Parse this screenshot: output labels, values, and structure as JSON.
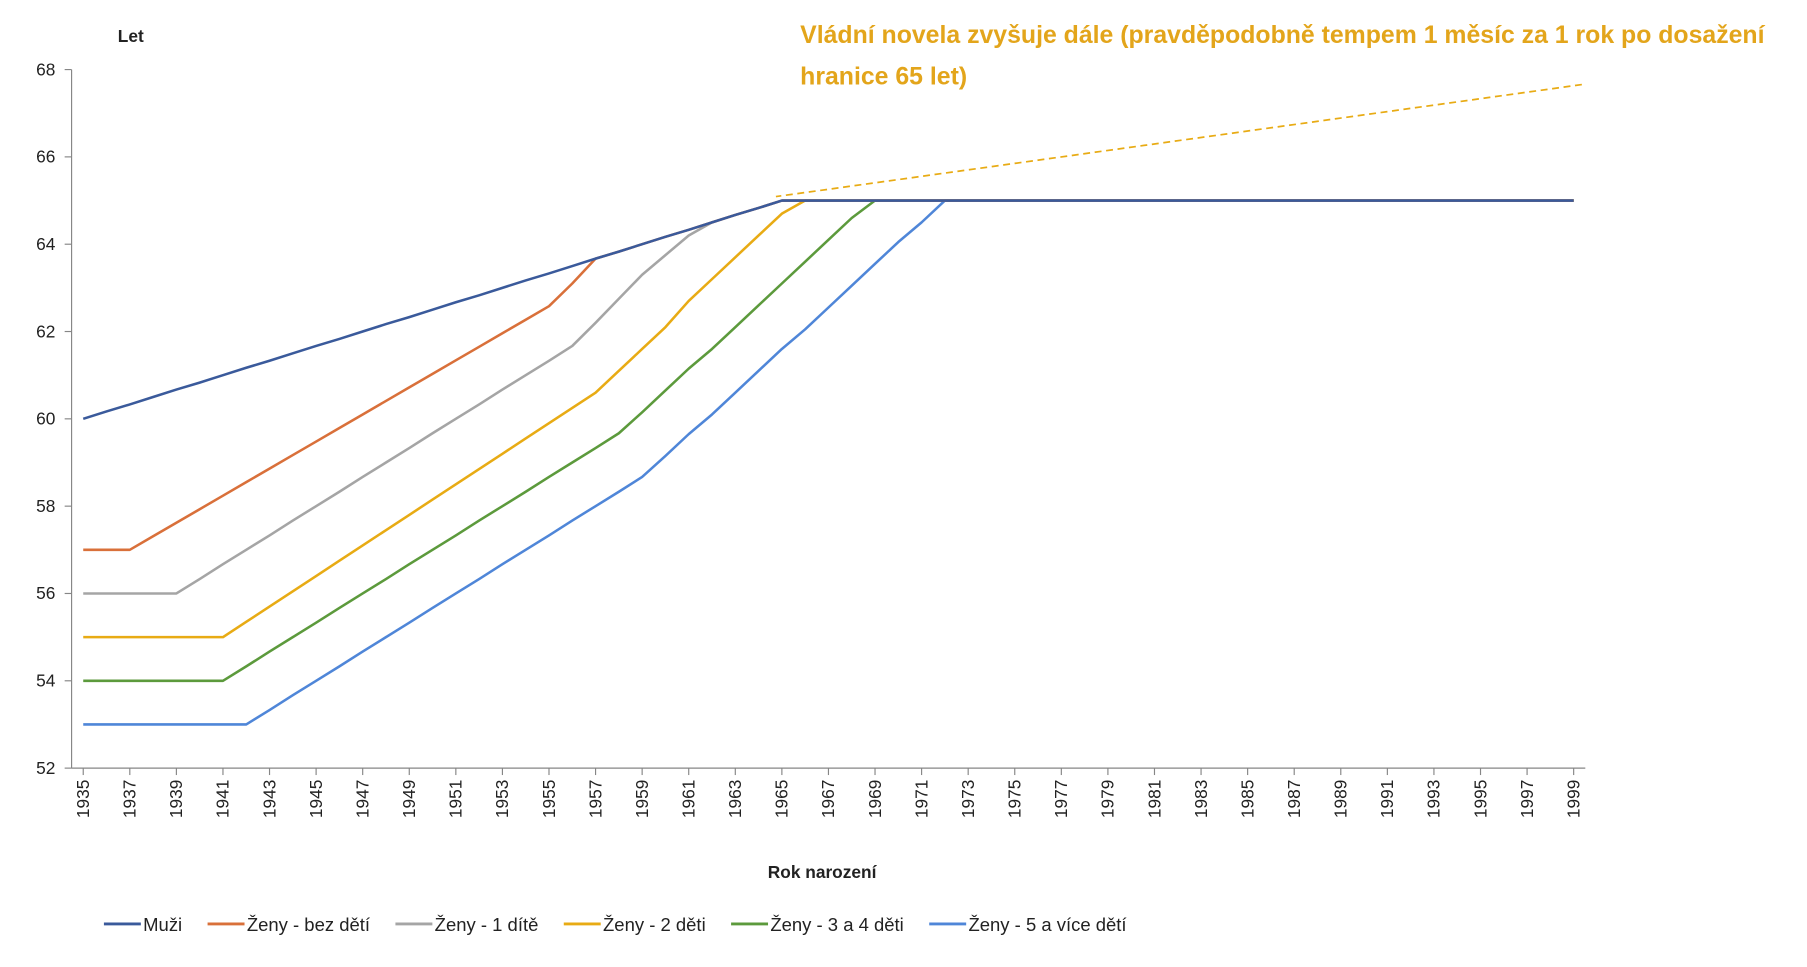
{
  "chart_data": {
    "type": "line",
    "y_label": "Let",
    "x_label": "Rok narození",
    "annotation": "Vládní novela zvyšuje dále (pravděpodobně tempem 1 měsíc za 1 rok po dosažení hranice 65 let)",
    "x": [
      1935,
      1936,
      1937,
      1938,
      1939,
      1940,
      1941,
      1942,
      1943,
      1944,
      1945,
      1946,
      1947,
      1948,
      1949,
      1950,
      1951,
      1952,
      1953,
      1954,
      1955,
      1956,
      1957,
      1958,
      1959,
      1960,
      1961,
      1962,
      1963,
      1964,
      1965,
      1966,
      1967,
      1968,
      1969,
      1970,
      1971,
      1972,
      1973,
      1974,
      1975,
      1976,
      1977,
      1978,
      1979,
      1980,
      1981,
      1982,
      1983,
      1984,
      1985,
      1986,
      1987,
      1988,
      1989,
      1990,
      1991,
      1992,
      1993,
      1994,
      1995,
      1996,
      1997,
      1998,
      1999
    ],
    "xlim": [
      1934.5,
      1999.5
    ],
    "xticks": [
      1935,
      1937,
      1939,
      1941,
      1943,
      1945,
      1947,
      1949,
      1951,
      1953,
      1955,
      1957,
      1959,
      1961,
      1963,
      1965,
      1967,
      1969,
      1971,
      1973,
      1975,
      1977,
      1979,
      1981,
      1983,
      1985,
      1987,
      1989,
      1991,
      1993,
      1995,
      1997,
      1999
    ],
    "ylim": [
      52,
      68
    ],
    "yticks": [
      52,
      54,
      56,
      58,
      60,
      62,
      64,
      66,
      68
    ],
    "grid": false,
    "legend": "bottom",
    "series": [
      {
        "name": "Muži",
        "color": "#3a5a9b",
        "values": [
          60,
          60.17,
          60.33,
          60.5,
          60.67,
          60.83,
          61,
          61.17,
          61.33,
          61.5,
          61.67,
          61.83,
          62,
          62.17,
          62.33,
          62.5,
          62.67,
          62.83,
          63,
          63.17,
          63.33,
          63.5,
          63.67,
          63.83,
          64,
          64.17,
          64.33,
          64.5,
          64.67,
          64.83,
          65,
          65,
          65,
          65,
          65,
          65,
          65,
          65,
          65,
          65,
          65,
          65,
          65,
          65,
          65,
          65,
          65,
          65,
          65,
          65,
          65,
          65,
          65,
          65,
          65,
          65,
          65,
          65,
          65,
          65,
          65,
          65,
          65,
          65,
          65
        ]
      },
      {
        "name": "Ženy - bez dětí",
        "color": "#d9703a",
        "values": [
          57,
          57,
          57,
          57.31,
          57.62,
          57.93,
          58.24,
          58.55,
          58.86,
          59.17,
          59.48,
          59.79,
          60.1,
          60.41,
          60.72,
          61.03,
          61.34,
          61.65,
          61.96,
          62.27,
          62.58,
          63.1,
          63.67,
          63.83,
          64,
          64.17,
          64.33,
          64.5,
          64.67,
          64.83,
          65,
          65,
          65,
          65,
          65,
          65,
          65,
          65,
          65,
          65,
          65,
          65,
          65,
          65,
          65,
          65,
          65,
          65,
          65,
          65,
          65,
          65,
          65,
          65,
          65,
          65,
          65,
          65,
          65,
          65,
          65,
          65,
          65,
          65,
          65
        ]
      },
      {
        "name": "Ženy - 1 dítě",
        "color": "#a5a5a5",
        "values": [
          56,
          56,
          56,
          56,
          56,
          56.33,
          56.67,
          57,
          57.33,
          57.67,
          58,
          58.33,
          58.67,
          59,
          59.33,
          59.67,
          60,
          60.33,
          60.67,
          61,
          61.33,
          61.67,
          62.2,
          62.75,
          63.3,
          63.75,
          64.2,
          64.5,
          64.67,
          64.83,
          65,
          65,
          65,
          65,
          65,
          65,
          65,
          65,
          65,
          65,
          65,
          65,
          65,
          65,
          65,
          65,
          65,
          65,
          65,
          65,
          65,
          65,
          65,
          65,
          65,
          65,
          65,
          65,
          65,
          65,
          65,
          65,
          65,
          65,
          65
        ]
      },
      {
        "name": "Ženy - 2 děti",
        "color": "#e8ab14",
        "values": [
          55,
          55,
          55,
          55,
          55,
          55,
          55,
          55.35,
          55.7,
          56.05,
          56.4,
          56.75,
          57.1,
          57.45,
          57.8,
          58.15,
          58.5,
          58.85,
          59.2,
          59.55,
          59.9,
          60.25,
          60.6,
          61.1,
          61.6,
          62.1,
          62.7,
          63.2,
          63.7,
          64.2,
          64.7,
          65,
          65,
          65,
          65,
          65,
          65,
          65,
          65,
          65,
          65,
          65,
          65,
          65,
          65,
          65,
          65,
          65,
          65,
          65,
          65,
          65,
          65,
          65,
          65,
          65,
          65,
          65,
          65,
          65,
          65,
          65,
          65,
          65,
          65
        ]
      },
      {
        "name": "Ženy - 3 a 4 děti",
        "color": "#5c9a3c",
        "values": [
          54,
          54,
          54,
          54,
          54,
          54,
          54,
          54.33,
          54.67,
          55,
          55.33,
          55.67,
          56,
          56.33,
          56.67,
          57,
          57.33,
          57.67,
          58,
          58.33,
          58.67,
          59,
          59.33,
          59.67,
          60.15,
          60.65,
          61.15,
          61.6,
          62.1,
          62.6,
          63.1,
          63.6,
          64.1,
          64.6,
          65,
          65,
          65,
          65,
          65,
          65,
          65,
          65,
          65,
          65,
          65,
          65,
          65,
          65,
          65,
          65,
          65,
          65,
          65,
          65,
          65,
          65,
          65,
          65,
          65,
          65,
          65,
          65,
          65,
          65,
          65
        ]
      },
      {
        "name": "Ženy - 5 a více dětí",
        "color": "#4f86d8",
        "values": [
          53,
          53,
          53,
          53,
          53,
          53,
          53,
          53,
          53.33,
          53.67,
          54,
          54.33,
          54.67,
          55,
          55.33,
          55.67,
          56,
          56.33,
          56.67,
          57,
          57.33,
          57.67,
          58,
          58.33,
          58.67,
          59.15,
          59.65,
          60.1,
          60.6,
          61.1,
          61.6,
          62.05,
          62.55,
          63.05,
          63.55,
          64.05,
          64.5,
          65,
          65,
          65,
          65,
          65,
          65,
          65,
          65,
          65,
          65,
          65,
          65,
          65,
          65,
          65,
          65,
          65,
          65,
          65,
          65,
          65,
          65,
          65,
          65,
          65,
          65,
          65,
          65
        ]
      }
    ]
  }
}
